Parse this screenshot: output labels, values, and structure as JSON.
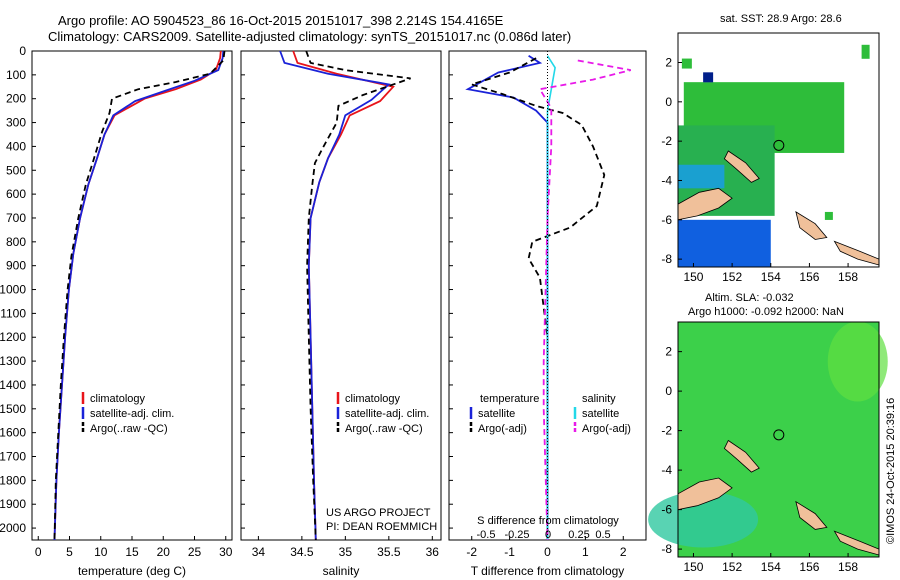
{
  "titles": {
    "line1": "Argo profile: AO 5904523_86 16-Oct-2015 20151017_398 2.214S 154.4165E",
    "line2": "Climatology: CARS2009. Satellite-adjusted climatology: synTS_20151017.nc (0.086d later)"
  },
  "colors": {
    "climatology": "#e8141a",
    "satellite": "#1a22d8",
    "argo": "#000000",
    "sat_salinity": "#22d8e8",
    "argo_salinity": "#e81ae8",
    "land": "#f0c09a",
    "ocean_green": "#3cc83c"
  },
  "footer": {
    "project": "US ARGO PROJECT",
    "pi": "PI: DEAN ROEMMICH",
    "copyright": "©IMOS 24-Oct-2015 20:39:16"
  },
  "chart_data": [
    {
      "type": "line",
      "panel": "temperature",
      "xlabel": "temperature (deg C)",
      "ylim": [
        0,
        2050
      ],
      "xlim": [
        -1,
        31
      ],
      "xticks": [
        0,
        5,
        10,
        15,
        20,
        25,
        30
      ],
      "yticks": [
        0,
        100,
        200,
        300,
        400,
        500,
        600,
        700,
        800,
        900,
        1000,
        1100,
        1200,
        1300,
        1400,
        1500,
        1600,
        1700,
        1800,
        1900,
        2000
      ],
      "legend": [
        "climatology",
        "satellite-adj. clim.",
        "Argo(..raw -QC)"
      ],
      "series": [
        {
          "name": "climatology",
          "points": [
            [
              29.2,
              0
            ],
            [
              29.1,
              30
            ],
            [
              28.4,
              80
            ],
            [
              26,
              120
            ],
            [
              22,
              160
            ],
            [
              17,
              200
            ],
            [
              12.2,
              270
            ],
            [
              10.6,
              350
            ],
            [
              9.4,
              450
            ],
            [
              8,
              560
            ],
            [
              6.7,
              700
            ],
            [
              5.6,
              850
            ],
            [
              4.9,
              1000
            ],
            [
              4.3,
              1200
            ],
            [
              3.8,
              1400
            ],
            [
              3.3,
              1600
            ],
            [
              2.9,
              1800
            ],
            [
              2.6,
              2050
            ]
          ]
        },
        {
          "name": "satellite-adj. clim.",
          "points": [
            [
              29.6,
              0
            ],
            [
              29.5,
              30
            ],
            [
              28.8,
              80
            ],
            [
              25,
              125
            ],
            [
              20.5,
              165
            ],
            [
              15.5,
              210
            ],
            [
              12,
              270
            ],
            [
              10.6,
              350
            ],
            [
              9.4,
              450
            ],
            [
              8,
              560
            ],
            [
              6.7,
              700
            ],
            [
              5.6,
              850
            ],
            [
              4.9,
              1000
            ],
            [
              4.3,
              1200
            ],
            [
              3.8,
              1400
            ],
            [
              3.3,
              1600
            ],
            [
              2.9,
              1800
            ],
            [
              2.6,
              2050
            ]
          ]
        },
        {
          "name": "Argo(..raw -QC)",
          "points": [
            [
              29.8,
              0
            ],
            [
              29.6,
              40
            ],
            [
              27.5,
              95
            ],
            [
              22,
              130
            ],
            [
              16,
              160
            ],
            [
              11.8,
              200
            ],
            [
              11.4,
              260
            ],
            [
              10.2,
              340
            ],
            [
              8.8,
              460
            ],
            [
              7.6,
              560
            ],
            [
              6.4,
              700
            ],
            [
              5.3,
              860
            ],
            [
              4.7,
              1000
            ],
            [
              4.1,
              1200
            ],
            [
              3.6,
              1400
            ],
            [
              3.2,
              1600
            ],
            [
              2.8,
              1800
            ],
            [
              2.6,
              2050
            ]
          ]
        }
      ]
    },
    {
      "type": "line",
      "panel": "salinity",
      "xlabel": "salinity",
      "ylim": [
        0,
        2050
      ],
      "xlim": [
        33.8,
        36.1
      ],
      "xticks": [
        34,
        34.5,
        35,
        35.5,
        36
      ],
      "legend": [
        "climatology",
        "satellite-adj. clim.",
        "Argo(..raw -QC)"
      ],
      "series": [
        {
          "name": "climatology",
          "points": [
            [
              34.4,
              0
            ],
            [
              34.45,
              50
            ],
            [
              34.9,
              95
            ],
            [
              35.55,
              150
            ],
            [
              35.4,
              210
            ],
            [
              35.05,
              270
            ],
            [
              34.95,
              350
            ],
            [
              34.8,
              450
            ],
            [
              34.7,
              550
            ],
            [
              34.6,
              700
            ],
            [
              34.58,
              900
            ],
            [
              34.6,
              1200
            ],
            [
              34.62,
              1500
            ],
            [
              34.64,
              1800
            ],
            [
              34.66,
              2050
            ]
          ]
        },
        {
          "name": "satellite-adj. clim.",
          "points": [
            [
              34.25,
              0
            ],
            [
              34.3,
              50
            ],
            [
              34.8,
              95
            ],
            [
              35.5,
              140
            ],
            [
              35.3,
              205
            ],
            [
              35.0,
              270
            ],
            [
              34.93,
              350
            ],
            [
              34.8,
              450
            ],
            [
              34.7,
              550
            ],
            [
              34.6,
              700
            ],
            [
              34.58,
              900
            ],
            [
              34.6,
              1200
            ],
            [
              34.62,
              1500
            ],
            [
              34.64,
              1800
            ],
            [
              34.66,
              2050
            ]
          ]
        },
        {
          "name": "Argo(..raw -QC)",
          "points": [
            [
              34.55,
              0
            ],
            [
              34.6,
              50
            ],
            [
              35.0,
              80
            ],
            [
              35.75,
              115
            ],
            [
              35.2,
              185
            ],
            [
              34.92,
              230
            ],
            [
              34.9,
              300
            ],
            [
              34.75,
              400
            ],
            [
              34.65,
              470
            ],
            [
              34.62,
              560
            ],
            [
              34.58,
              700
            ],
            [
              34.56,
              900
            ],
            [
              34.58,
              1200
            ],
            [
              34.6,
              1500
            ],
            [
              34.63,
              1800
            ],
            [
              34.66,
              2050
            ]
          ]
        }
      ]
    },
    {
      "type": "line",
      "panel": "difference",
      "xlabel": "T difference from climatology",
      "x2label": "S difference from climatology",
      "ylim": [
        0,
        2050
      ],
      "xlim": [
        -2.6,
        2.6
      ],
      "xticks": [
        -2,
        -1,
        0,
        1,
        2
      ],
      "x2ticks": [
        "-0.5",
        "-0.25",
        "0",
        "0.25",
        "0.5"
      ],
      "legend_titles": [
        "temperature",
        "salinity"
      ],
      "legend": [
        "satellite",
        "Argo(-adj)",
        "satellite",
        "Argo(-adj)"
      ],
      "series": [
        {
          "name": "satellite",
          "points": [
            [
              -0.5,
              20
            ],
            [
              -0.2,
              50
            ],
            [
              -1.3,
              90
            ],
            [
              -2.1,
              160
            ],
            [
              -0.9,
              195
            ],
            [
              -0.3,
              250
            ],
            [
              0,
              300
            ],
            [
              0,
              500
            ],
            [
              0,
              1000
            ],
            [
              0,
              1500
            ],
            [
              0,
              2050
            ]
          ]
        },
        {
          "name": "Argo(-adj)",
          "points": [
            [
              -0.3,
              30
            ],
            [
              -1,
              90
            ],
            [
              -2.0,
              140
            ],
            [
              -1.2,
              180
            ],
            [
              -0.3,
              230
            ],
            [
              0.4,
              260
            ],
            [
              0.9,
              310
            ],
            [
              1.2,
              400
            ],
            [
              1.5,
              520
            ],
            [
              1.3,
              650
            ],
            [
              0.6,
              740
            ],
            [
              -0.4,
              800
            ],
            [
              -0.5,
              870
            ],
            [
              -0.2,
              950
            ],
            [
              0,
              1200
            ],
            [
              0,
              2050
            ]
          ]
        },
        {
          "name": "satellite",
          "points": [
            [
              0,
              20
            ],
            [
              0.2,
              70
            ],
            [
              0.1,
              160
            ],
            [
              0,
              250
            ],
            [
              0,
              600
            ],
            [
              0,
              1000
            ],
            [
              0,
              1500
            ],
            [
              0,
              2050
            ]
          ]
        },
        {
          "name": "Argo(-adj)",
          "points": [
            [
              0.8,
              40
            ],
            [
              2.2,
              80
            ],
            [
              1.2,
              120
            ],
            [
              -0.2,
              160
            ],
            [
              0.1,
              240
            ],
            [
              0.1,
              400
            ],
            [
              0,
              700
            ],
            [
              -0.1,
              1300
            ],
            [
              -0.1,
              1500
            ],
            [
              0,
              2050
            ]
          ]
        }
      ]
    },
    {
      "type": "heatmap",
      "panel": "sst_map",
      "title": "sat. SST: 28.9 Argo: 28.6",
      "xticks": [
        150,
        152,
        154,
        156,
        158
      ],
      "yticks": [
        2,
        0,
        -2,
        -4,
        -6,
        -8
      ],
      "xlim": [
        149.2,
        159.6
      ],
      "ylim": [
        -8.4,
        3.5
      ],
      "argo_location": [
        154.4165,
        -2.214
      ]
    },
    {
      "type": "heatmap",
      "panel": "sla_map",
      "title": "Altim. SLA: -0.032",
      "subtitle": "Argo h1000: -0.092 h2000: NaN",
      "xticks": [
        150,
        152,
        154,
        156,
        158
      ],
      "yticks": [
        2,
        0,
        -2,
        -4,
        -6,
        -8
      ],
      "xlim": [
        149.2,
        159.6
      ],
      "ylim": [
        -8.4,
        3.5
      ],
      "argo_location": [
        154.4165,
        -2.214
      ]
    }
  ]
}
